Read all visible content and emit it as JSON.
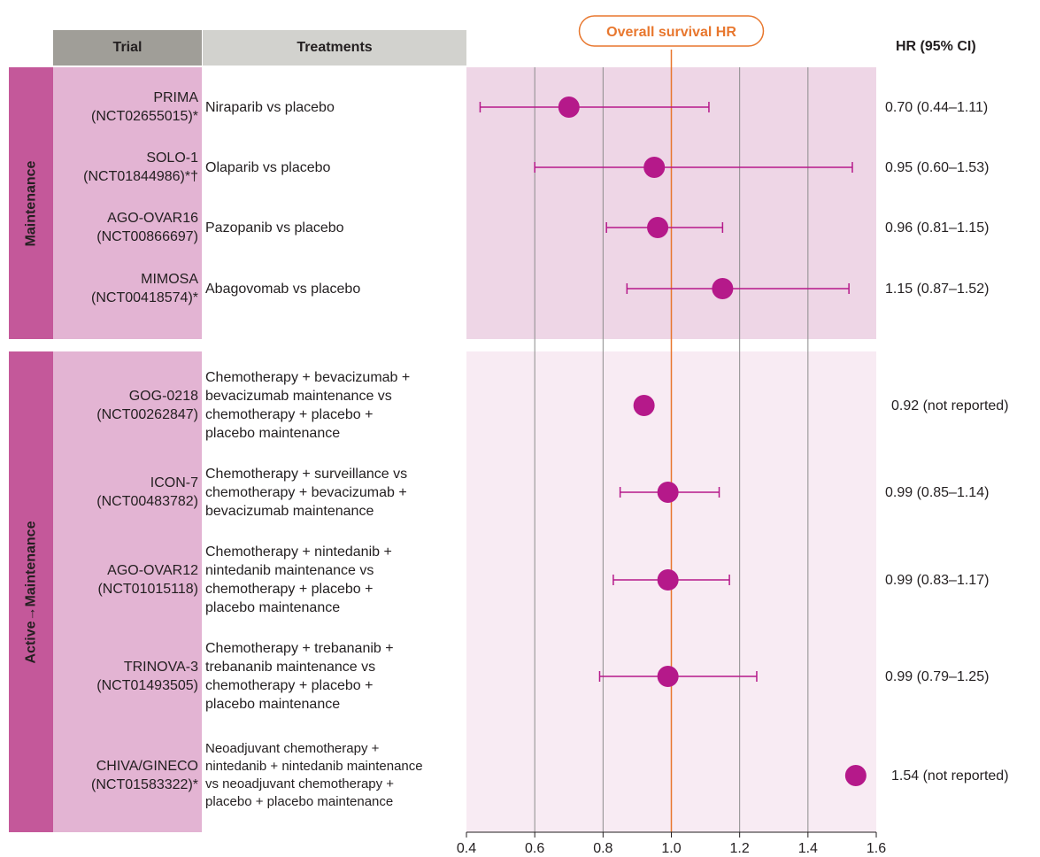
{
  "header": {
    "trial_label": "Trial",
    "treatments_label": "Treatments",
    "hr_label": "HR (95% CI)",
    "badge": "Overall survival HR"
  },
  "groups": [
    {
      "label": "Maintenance"
    },
    {
      "label": "Active→Maintenance"
    }
  ],
  "rows": [
    {
      "group": 0,
      "trial": "PRIMA",
      "nct": "(NCT02655015)*",
      "treatment": [
        "Niraparib vs placebo"
      ],
      "hr_text": "0.70 (0.44–1.11)"
    },
    {
      "group": 0,
      "trial": "SOLO-1",
      "nct": "(NCT01844986)*†",
      "treatment": [
        "Olaparib vs placebo"
      ],
      "hr_text": "0.95 (0.60–1.53)"
    },
    {
      "group": 0,
      "trial": "AGO-OVAR16",
      "nct": "(NCT00866697)",
      "treatment": [
        "Pazopanib vs placebo"
      ],
      "hr_text": "0.96 (0.81–1.15)"
    },
    {
      "group": 0,
      "trial": "MIMOSA",
      "nct": "(NCT00418574)*",
      "treatment": [
        "Abagovomab vs placebo"
      ],
      "hr_text": "1.15 (0.87–1.52)"
    },
    {
      "group": 1,
      "trial": "GOG-0218",
      "nct": "(NCT00262847)",
      "treatment": [
        "Chemotherapy + bevacizumab +",
        "bevacizumab maintenance vs",
        "chemotherapy + placebo +",
        "placebo maintenance"
      ],
      "hr_text": "0.92 (not reported)"
    },
    {
      "group": 1,
      "trial": "ICON-7",
      "nct": "(NCT00483782)",
      "treatment": [
        "Chemotherapy + surveillance vs",
        "chemotherapy + bevacizumab +",
        "bevacizumab maintenance"
      ],
      "hr_text": "0.99 (0.85–1.14)"
    },
    {
      "group": 1,
      "trial": "AGO-OVAR12",
      "nct": "(NCT01015118)",
      "treatment": [
        "Chemotherapy + nintedanib +",
        "nintedanib maintenance vs",
        "chemotherapy + placebo +",
        "placebo maintenance"
      ],
      "hr_text": "0.99 (0.83–1.17)"
    },
    {
      "group": 1,
      "trial": "TRINOVA-3",
      "nct": "(NCT01493505)",
      "treatment": [
        "Chemotherapy + trebananib +",
        "trebananib maintenance vs",
        "chemotherapy + placebo +",
        "placebo maintenance"
      ],
      "hr_text": "0.99 (0.79–1.25)"
    },
    {
      "group": 1,
      "trial": "CHIVA/GINECO",
      "nct": "(NCT01583322)*",
      "treatment": [
        "Neoadjuvant chemotherapy +",
        "nintedanib + nintedanib maintenance",
        "vs neoadjuvant chemotherapy +",
        "placebo + placebo maintenance"
      ],
      "hr_text": "1.54 (not reported)"
    }
  ],
  "chart_data": {
    "type": "scatter",
    "subtype": "forest-plot",
    "title": "Overall survival HR",
    "xlim": [
      0.4,
      1.6
    ],
    "xticks": [
      "0.4",
      "0.6",
      "0.8",
      "1.0",
      "1.2",
      "1.4",
      "1.6"
    ],
    "gridlines": [
      0.6,
      0.8,
      1.2,
      1.4
    ],
    "reference_line": 1.0,
    "grid": true,
    "points": [
      {
        "trial": "PRIMA",
        "hr": 0.7,
        "lower": 0.44,
        "upper": 1.11
      },
      {
        "trial": "SOLO-1",
        "hr": 0.95,
        "lower": 0.6,
        "upper": 1.53
      },
      {
        "trial": "AGO-OVAR16",
        "hr": 0.96,
        "lower": 0.81,
        "upper": 1.15
      },
      {
        "trial": "MIMOSA",
        "hr": 1.15,
        "lower": 0.87,
        "upper": 1.52
      },
      {
        "trial": "GOG-0218",
        "hr": 0.92,
        "lower": null,
        "upper": null
      },
      {
        "trial": "ICON-7",
        "hr": 0.99,
        "lower": 0.85,
        "upper": 1.14
      },
      {
        "trial": "AGO-OVAR12",
        "hr": 0.99,
        "lower": 0.83,
        "upper": 1.17
      },
      {
        "trial": "TRINOVA-3",
        "hr": 0.99,
        "lower": 0.79,
        "upper": 1.25
      },
      {
        "trial": "CHIVA/GINECO",
        "hr": 1.54,
        "lower": null,
        "upper": null
      }
    ],
    "colors": {
      "marker": "#b5198a",
      "reference": "#e8772e",
      "grid": "#8c8c8c",
      "band_maintenance": "#eed6e6",
      "band_active": "#f8ebf3",
      "side_band": "#c4589a",
      "trial_column": "#e3b4d3",
      "header_trial": "#a09e98",
      "header_treatments": "#d2d2ce"
    }
  }
}
